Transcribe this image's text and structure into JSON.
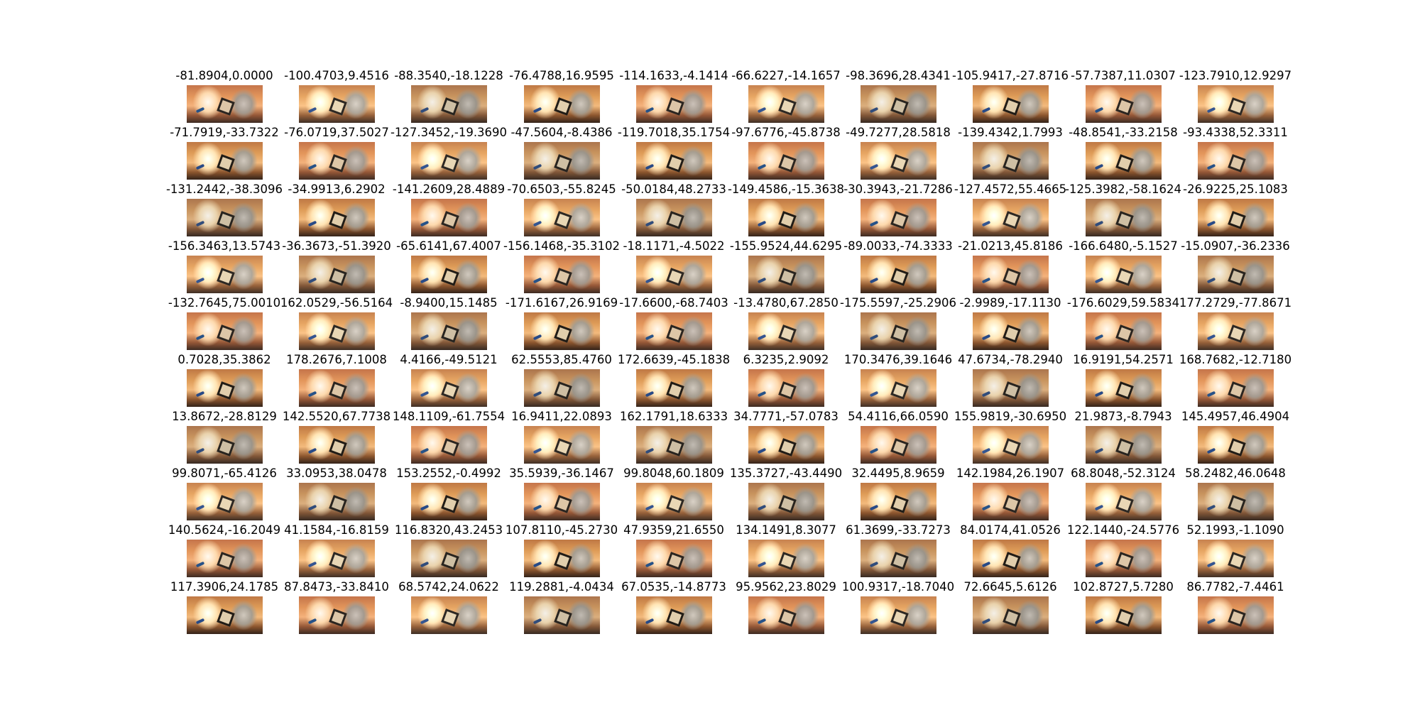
{
  "grid": {
    "columns": 10,
    "rows": 10,
    "titles": [
      "-81.8904,0.0000",
      "-100.4703,9.4516",
      "-88.3540,-18.1228",
      "-76.4788,16.9595",
      "-114.1633,-4.1414",
      "-66.6227,-14.1657",
      "-98.3696,28.4341",
      "-105.9417,-27.8716",
      "-57.7387,11.0307",
      "-123.7910,12.9297",
      "-71.7919,-33.7322",
      "-76.0719,37.5027",
      "-127.3452,-19.3690",
      "-47.5604,-8.4386",
      "-119.7018,35.1754",
      "-97.6776,-45.8738",
      "-49.7277,28.5818",
      "-139.4342,1.7993",
      "-48.8541,-33.2158",
      "-93.4338,52.3311",
      "-131.2442,-38.3096",
      "-34.9913,6.2902",
      "-141.2609,28.4889",
      "-70.6503,-55.8245",
      "-50.0184,48.2733",
      "-149.4586,-15.3638",
      "-30.3943,-21.7286",
      "-127.4572,55.4665",
      "-125.3982,-58.1624",
      "-26.9225,25.1083",
      "-156.3463,13.5743",
      "-36.3673,-51.3920",
      "-65.6141,67.4007",
      "-156.1468,-35.3102",
      "-18.1171,-4.5022",
      "-155.9524,44.6295",
      "-89.0033,-74.3333",
      "-21.0213,45.8186",
      "-166.6480,-5.1527",
      "-15.0907,-36.2336",
      "-132.7645,75.0010",
      "162.0529,-56.5164",
      "-8.9400,15.1485",
      "-171.6167,26.9169",
      "-17.6600,-68.7403",
      "-13.4780,67.2850",
      "-175.5597,-25.2906",
      "-2.9989,-17.1130",
      "-176.6029,59.5834",
      "177.2729,-77.8671",
      "0.7028,35.3862",
      "178.2676,7.1008",
      "4.4166,-49.5121",
      "62.5553,85.4760",
      "172.6639,-45.1838",
      "6.3235,2.9092",
      "170.3476,39.1646",
      "47.6734,-78.2940",
      "16.9191,54.2571",
      "168.7682,-12.7180",
      "13.8672,-28.8129",
      "142.5520,67.7738",
      "148.1109,-61.7554",
      "16.9411,22.0893",
      "162.1791,18.6333",
      "34.7771,-57.0783",
      "54.4116,66.0590",
      "155.9819,-30.6950",
      "21.9873,-8.7943",
      "145.4957,46.4904",
      "99.8071,-65.4126",
      "33.0953,38.0478",
      "153.2552,-0.4992",
      "35.5939,-36.1467",
      "99.8048,60.1809",
      "135.3727,-43.4490",
      "32.4495,8.9659",
      "142.1984,26.1907",
      "68.8048,-52.3124",
      "58.2482,46.0648",
      "140.5624,-16.2049",
      "41.1584,-16.8159",
      "116.8320,43.2453",
      "107.8110,-45.2730",
      "47.9359,21.6550",
      "134.1491,8.3077",
      "61.3699,-33.7273",
      "84.0174,41.0526",
      "122.1440,-24.5776",
      "52.1993,-1.1090",
      "117.3906,24.1785",
      "87.8473,-33.8410",
      "68.5742,24.0622",
      "119.2881,-4.0434",
      "67.0535,-14.8773",
      "95.9562,23.8029",
      "100.9317,-18.7040",
      "72.6645,5.6126",
      "102.8727,5.7280",
      "86.7782,-7.4461"
    ]
  }
}
